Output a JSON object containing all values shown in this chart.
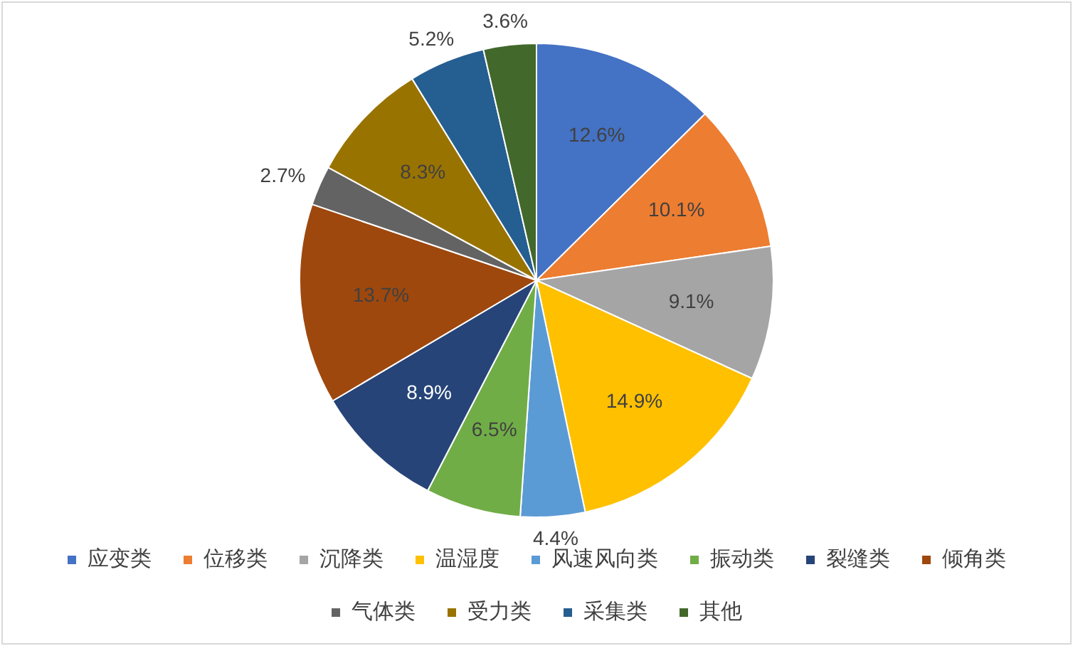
{
  "chart_data": {
    "type": "pie",
    "categories": [
      "应变类",
      "位移类",
      "沉降类",
      "温湿度",
      "风速风向类",
      "振动类",
      "裂缝类",
      "倾角类",
      "气体类",
      "受力类",
      "采集类",
      "其他"
    ],
    "values": [
      12.6,
      10.1,
      9.1,
      14.9,
      4.4,
      6.5,
      8.9,
      13.7,
      2.7,
      8.3,
      5.2,
      3.6
    ],
    "colors": [
      "#4472c4",
      "#ed7d31",
      "#a5a5a5",
      "#ffc000",
      "#5b9bd5",
      "#70ad47",
      "#264478",
      "#9e480e",
      "#636363",
      "#997300",
      "#255e91",
      "#43682b"
    ],
    "value_labels": [
      "12.6%",
      "10.1%",
      "9.1%",
      "14.9%",
      "4.4%",
      "6.5%",
      "8.9%",
      "13.7%",
      "2.7%",
      "8.3%",
      "5.2%",
      "3.6%"
    ],
    "legend": "bottom"
  }
}
